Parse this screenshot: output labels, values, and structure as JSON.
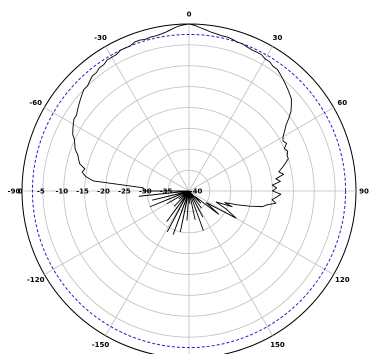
{
  "chart_data": {
    "type": "polar-line",
    "angular_ticks": [
      "0",
      "30",
      "60",
      "90",
      "120",
      "150",
      "-150",
      "-120",
      "-90",
      "-60",
      "-30"
    ],
    "radial_ticks": [
      "0",
      "-5",
      "-10",
      "-15",
      "-20",
      "-25",
      "-30",
      "-35",
      "-40"
    ],
    "radial_range_db": [
      -40,
      0
    ],
    "reference_level_db": -2.5,
    "grid": true,
    "colors": {
      "pattern": "#000000",
      "reference": "#2222cc",
      "grid": "#bfbfbf",
      "axis": "#000000"
    },
    "series": [
      {
        "angles_deg": [
          -180,
          -176,
          -172,
          -168,
          -164,
          -160,
          -156,
          -152,
          -148,
          -144,
          -140,
          -136,
          -132,
          -128,
          -124,
          -120,
          -116,
          -112,
          -108,
          -104,
          -100,
          -96,
          -92,
          -90,
          -88,
          -86,
          -84,
          -82,
          -80,
          -78,
          -76,
          -74,
          -72,
          -70,
          -68,
          -66,
          -64,
          -62,
          -60,
          -58,
          -56,
          -54,
          -52,
          -50,
          -48,
          -46,
          -44,
          -42,
          -40,
          -38,
          -36,
          -34,
          -32,
          -30,
          -28,
          -26,
          -24,
          -22,
          -20,
          -18,
          -16,
          -14,
          -12,
          -10,
          -8,
          -6,
          -4,
          -2,
          0,
          2,
          4,
          6,
          8,
          10,
          12,
          14,
          16,
          18,
          20,
          22,
          24,
          26,
          28,
          30,
          32,
          34,
          36,
          38,
          40,
          42,
          44,
          46,
          48,
          50,
          52,
          54,
          56,
          58,
          60,
          62,
          64,
          66,
          68,
          70,
          72,
          74,
          76,
          78,
          80,
          82,
          84,
          86,
          88,
          90,
          92,
          94,
          96,
          98,
          100,
          102,
          104,
          106,
          108,
          110,
          112,
          116,
          120,
          124,
          128,
          132,
          136,
          140,
          144,
          148,
          152,
          156,
          160,
          164,
          168,
          172,
          176,
          180
        ],
        "values_db": [
          -40,
          -33,
          -40,
          -30,
          -39,
          -29,
          -40,
          -29,
          -39,
          -31,
          -40,
          -35,
          -40,
          -37,
          -40,
          -34,
          -40,
          -30,
          -39,
          -31,
          -40,
          -28,
          -40,
          -29,
          -29,
          -29,
          -17,
          -15,
          -14,
          -14.5,
          -13,
          -12.5,
          -12,
          -11,
          -10.5,
          -10,
          -9,
          -8.5,
          -8,
          -7.5,
          -7.5,
          -7,
          -6.5,
          -6,
          -5.5,
          -5,
          -5,
          -4.5,
          -4,
          -4,
          -3.5,
          -3.5,
          -3,
          -3,
          -3,
          -2.5,
          -2.5,
          -2.5,
          -2,
          -2,
          -2.2,
          -2,
          -2,
          -1.8,
          -1.5,
          -1,
          -0.5,
          -0.2,
          0,
          -0.3,
          -0.8,
          -1.2,
          -1.6,
          -1.8,
          -2,
          -2,
          -2.2,
          -2.5,
          -2.5,
          -2.8,
          -3,
          -3,
          -3,
          -3.5,
          -3.5,
          -4,
          -4,
          -4.5,
          -5,
          -5.5,
          -6,
          -6.5,
          -7,
          -8,
          -9,
          -10.5,
          -12,
          -13,
          -14,
          -14.5,
          -14,
          -15,
          -14.5,
          -15,
          -15,
          -16,
          -17,
          -18,
          -17,
          -19,
          -18,
          -20,
          -19,
          -20,
          -18,
          -19,
          -20,
          -19,
          -21,
          -22,
          -25,
          -28,
          -31,
          -29,
          -33,
          -30,
          -27,
          -35,
          -31,
          -38,
          -36,
          -40,
          -35,
          -40,
          -33,
          -40,
          -30,
          -40,
          -33,
          -40,
          -37,
          -40
        ]
      }
    ]
  }
}
